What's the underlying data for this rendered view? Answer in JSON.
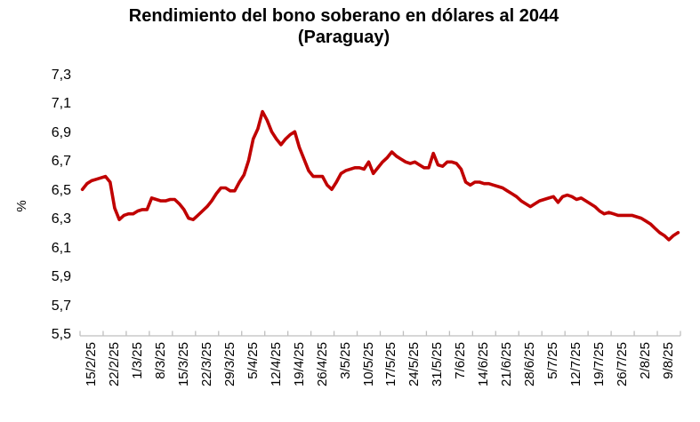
{
  "chart_data": {
    "type": "line",
    "title": "Rendimiento del bono soberano en dólares al 2044",
    "subtitle": "(Paraguay)",
    "ylabel": "%",
    "ylim": [
      5.5,
      7.3
    ],
    "ytick_step": 0.2,
    "ytick_labels": [
      "5,5",
      "5,7",
      "5,9",
      "6,1",
      "6,3",
      "6,5",
      "6,7",
      "6,9",
      "7,1",
      "7,3"
    ],
    "x_tick_labels": [
      "15/2/25",
      "22/2/25",
      "1/3/25",
      "8/3/25",
      "15/3/25",
      "22/3/25",
      "29/3/25",
      "5/4/25",
      "12/4/25",
      "19/4/25",
      "26/4/25",
      "3/5/25",
      "10/5/25",
      "17/5/25",
      "24/5/25",
      "31/5/25",
      "7/6/25",
      "14/6/25",
      "21/6/25",
      "28/6/25",
      "5/7/25",
      "12/7/25",
      "19/7/25",
      "26/7/25",
      "2/8/25",
      "9/8/25"
    ],
    "grid": false,
    "legend": "none",
    "line_color": "#C00000",
    "axis_color": "#BFBFBF",
    "series": [
      {
        "name": "Rendimiento bono soberano en dólares al 2044 (%)",
        "color": "#C00000",
        "values": [
          6.51,
          6.55,
          6.57,
          6.58,
          6.59,
          6.6,
          6.56,
          6.38,
          6.3,
          6.33,
          6.34,
          6.34,
          6.36,
          6.37,
          6.37,
          6.45,
          6.44,
          6.43,
          6.43,
          6.44,
          6.44,
          6.41,
          6.37,
          6.31,
          6.3,
          6.33,
          6.36,
          6.39,
          6.43,
          6.48,
          6.52,
          6.52,
          6.5,
          6.5,
          6.56,
          6.61,
          6.71,
          6.86,
          6.93,
          7.05,
          6.99,
          6.91,
          6.86,
          6.82,
          6.86,
          6.89,
          6.91,
          6.8,
          6.72,
          6.64,
          6.6,
          6.6,
          6.6,
          6.54,
          6.51,
          6.56,
          6.62,
          6.64,
          6.65,
          6.66,
          6.66,
          6.65,
          6.7,
          6.62,
          6.66,
          6.7,
          6.73,
          6.77,
          6.74,
          6.72,
          6.7,
          6.69,
          6.7,
          6.68,
          6.66,
          6.66,
          6.76,
          6.68,
          6.67,
          6.7,
          6.7,
          6.69,
          6.65,
          6.56,
          6.54,
          6.56,
          6.56,
          6.55,
          6.55,
          6.54,
          6.53,
          6.52,
          6.5,
          6.48,
          6.46,
          6.43,
          6.41,
          6.39,
          6.41,
          6.43,
          6.44,
          6.45,
          6.46,
          6.42,
          6.46,
          6.47,
          6.46,
          6.44,
          6.45,
          6.43,
          6.41,
          6.39,
          6.36,
          6.34,
          6.35,
          6.34,
          6.33,
          6.33,
          6.33,
          6.33,
          6.32,
          6.31,
          6.29,
          6.27,
          6.24,
          6.21,
          6.19,
          6.16,
          6.19,
          6.21
        ]
      }
    ]
  }
}
